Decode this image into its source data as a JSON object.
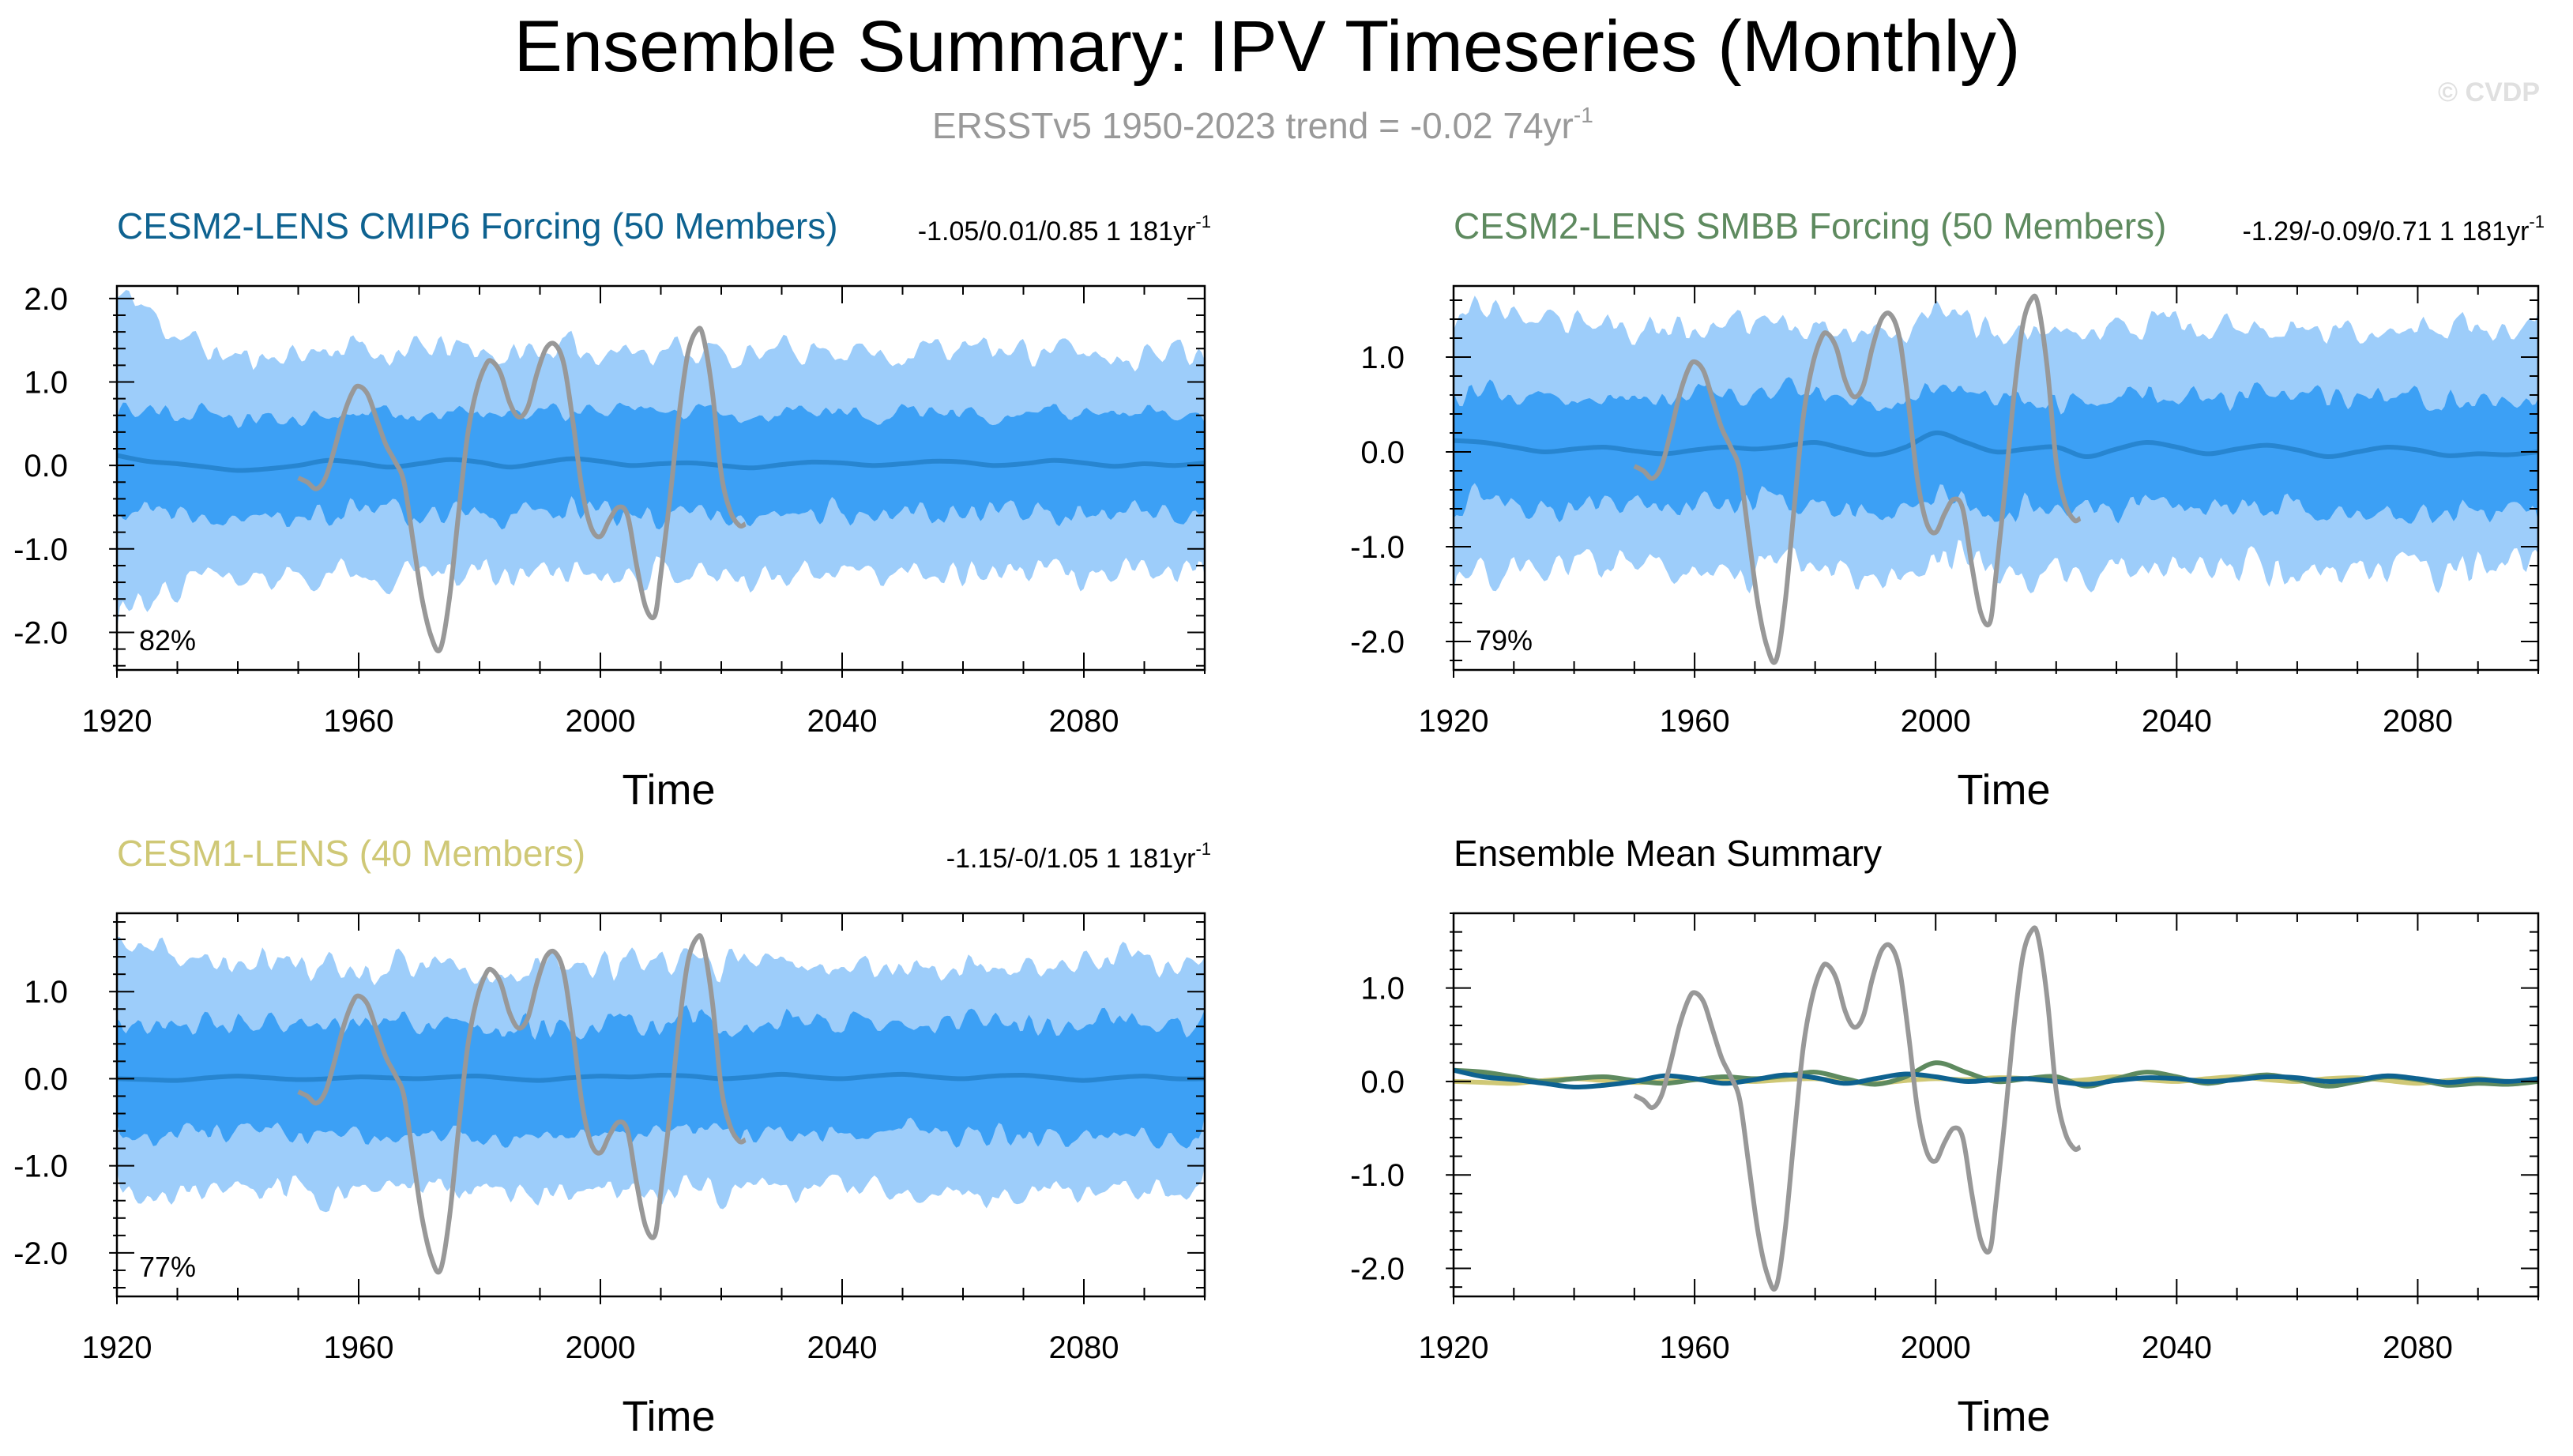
{
  "page": {
    "title": "Ensemble Summary: IPV Timeseries (Monthly)",
    "subtitle_main": "ERSSTv5 1950-2023 trend = -0.02 74yr",
    "subtitle_sup": "-1",
    "watermark": "© CVDP"
  },
  "colors": {
    "title": "#000000",
    "subtitle": "#999999",
    "watermark": "#e0e0e0",
    "outer_band": "#9dcdfa",
    "inner_band": "#3ca0f5",
    "mean_line": "#2785d0",
    "obs_line": "#989898",
    "cmip6": "#0e6290",
    "smbb": "#5e8a5f",
    "cesm1": "#cfc876"
  },
  "chart_data": [
    {
      "id": "cmip6",
      "type": "area",
      "title": "CESM2-LENS CMIP6 Forcing (50 Members)",
      "title_color": "#0e6290",
      "stats": "-1.05/0.01/0.85 1 181yr",
      "stats_sup": "-1",
      "pct": "82%",
      "xlabel": "Time",
      "xlim": [
        1920,
        2100
      ],
      "ylim": [
        -2.45,
        2.15
      ],
      "xticks": [
        "1920",
        "1960",
        "2000",
        "2040",
        "2080"
      ],
      "yticks": [
        "2.0",
        "1.0",
        "0.0",
        "-1.0",
        "-2.0"
      ],
      "ytick_values": [
        2.0,
        1.0,
        0.0,
        -1.0,
        -2.0
      ],
      "band_seed": 11,
      "band": {
        "outer_upper": 1.35,
        "outer_lower": -1.3,
        "inner_upper": 0.6,
        "inner_lower": -0.6,
        "early_outer": 2.0
      },
      "mean": [
        [
          1920,
          0.12
        ],
        [
          1925,
          0.05
        ],
        [
          1930,
          0.02
        ],
        [
          1935,
          -0.02
        ],
        [
          1940,
          -0.06
        ],
        [
          1945,
          -0.04
        ],
        [
          1950,
          0.0
        ],
        [
          1955,
          0.06
        ],
        [
          1960,
          0.03
        ],
        [
          1965,
          -0.02
        ],
        [
          1970,
          0.02
        ],
        [
          1975,
          0.07
        ],
        [
          1980,
          0.04
        ],
        [
          1985,
          -0.02
        ],
        [
          1990,
          0.03
        ],
        [
          1995,
          0.08
        ],
        [
          2000,
          0.05
        ],
        [
          2005,
          0.0
        ],
        [
          2010,
          0.02
        ],
        [
          2015,
          0.03
        ],
        [
          2020,
          0.0
        ],
        [
          2025,
          -0.03
        ],
        [
          2030,
          0.01
        ],
        [
          2035,
          0.04
        ],
        [
          2040,
          0.03
        ],
        [
          2045,
          0.0
        ],
        [
          2050,
          0.02
        ],
        [
          2055,
          0.05
        ],
        [
          2060,
          0.04
        ],
        [
          2065,
          0.0
        ],
        [
          2070,
          0.02
        ],
        [
          2075,
          0.06
        ],
        [
          2080,
          0.03
        ],
        [
          2085,
          -0.01
        ],
        [
          2090,
          0.02
        ],
        [
          2095,
          0.0
        ],
        [
          2100,
          0.03
        ]
      ]
    },
    {
      "id": "smbb",
      "type": "area",
      "title": "CESM2-LENS SMBB Forcing (50 Members)",
      "title_color": "#5e8a5f",
      "stats": "-1.29/-0.09/0.71 1 181yr",
      "stats_sup": "-1",
      "pct": "79%",
      "xlabel": "Time",
      "xlim": [
        1920,
        2100
      ],
      "ylim": [
        -2.3,
        1.75
      ],
      "xticks": [
        "1920",
        "1960",
        "2000",
        "2040",
        "2080"
      ],
      "yticks": [
        "1.0",
        "0.0",
        "-1.0",
        "-2.0"
      ],
      "ytick_values": [
        1.0,
        0.0,
        -1.0,
        -2.0
      ],
      "band_seed": 23,
      "band": {
        "outer_upper": 1.3,
        "outer_lower": -1.25,
        "inner_upper": 0.55,
        "inner_lower": -0.6,
        "early_outer": 1.5
      },
      "mean": [
        [
          1920,
          0.12
        ],
        [
          1925,
          0.1
        ],
        [
          1930,
          0.05
        ],
        [
          1935,
          0.0
        ],
        [
          1940,
          0.03
        ],
        [
          1945,
          0.05
        ],
        [
          1950,
          0.01
        ],
        [
          1955,
          -0.02
        ],
        [
          1960,
          0.02
        ],
        [
          1965,
          0.05
        ],
        [
          1970,
          0.03
        ],
        [
          1975,
          0.06
        ],
        [
          1980,
          0.1
        ],
        [
          1985,
          0.03
        ],
        [
          1990,
          -0.03
        ],
        [
          1995,
          0.05
        ],
        [
          2000,
          0.2
        ],
        [
          2005,
          0.1
        ],
        [
          2010,
          0.0
        ],
        [
          2015,
          0.03
        ],
        [
          2020,
          0.05
        ],
        [
          2025,
          -0.05
        ],
        [
          2030,
          0.03
        ],
        [
          2035,
          0.1
        ],
        [
          2040,
          0.05
        ],
        [
          2045,
          -0.02
        ],
        [
          2050,
          0.03
        ],
        [
          2055,
          0.07
        ],
        [
          2060,
          0.02
        ],
        [
          2065,
          -0.05
        ],
        [
          2070,
          0.0
        ],
        [
          2075,
          0.05
        ],
        [
          2080,
          0.02
        ],
        [
          2085,
          -0.04
        ],
        [
          2090,
          -0.02
        ],
        [
          2095,
          -0.03
        ],
        [
          2100,
          0.0
        ]
      ]
    },
    {
      "id": "cesm1",
      "type": "area",
      "title": "CESM1-LENS (40 Members)",
      "title_color": "#cfc876",
      "stats": "-1.15/-0/1.05 1 181yr",
      "stats_sup": "-1",
      "pct": "77%",
      "xlabel": "Time",
      "xlim": [
        1920,
        2100
      ],
      "ylim": [
        -2.5,
        1.9
      ],
      "xticks": [
        "1920",
        "1960",
        "2000",
        "2040",
        "2080"
      ],
      "yticks": [
        "1.0",
        "0.0",
        "-1.0",
        "-2.0"
      ],
      "ytick_values": [
        1.0,
        0.0,
        -1.0,
        -2.0
      ],
      "band_seed": 37,
      "band": {
        "outer_upper": 1.3,
        "outer_lower": -1.3,
        "inner_upper": 0.62,
        "inner_lower": -0.65,
        "early_outer": 1.5
      },
      "mean": [
        [
          1920,
          0.0
        ],
        [
          1925,
          -0.01
        ],
        [
          1930,
          -0.02
        ],
        [
          1935,
          0.01
        ],
        [
          1940,
          0.03
        ],
        [
          1945,
          0.01
        ],
        [
          1950,
          -0.01
        ],
        [
          1955,
          0.0
        ],
        [
          1960,
          0.02
        ],
        [
          1965,
          0.01
        ],
        [
          1970,
          0.0
        ],
        [
          1975,
          0.02
        ],
        [
          1980,
          0.03
        ],
        [
          1985,
          0.0
        ],
        [
          1990,
          -0.02
        ],
        [
          1995,
          0.01
        ],
        [
          2000,
          0.03
        ],
        [
          2005,
          0.02
        ],
        [
          2010,
          0.04
        ],
        [
          2015,
          0.03
        ],
        [
          2020,
          0.0
        ],
        [
          2025,
          0.02
        ],
        [
          2030,
          0.05
        ],
        [
          2035,
          0.02
        ],
        [
          2040,
          0.0
        ],
        [
          2045,
          0.03
        ],
        [
          2050,
          0.05
        ],
        [
          2055,
          0.02
        ],
        [
          2060,
          0.0
        ],
        [
          2065,
          0.03
        ],
        [
          2070,
          0.04
        ],
        [
          2075,
          0.01
        ],
        [
          2080,
          -0.02
        ],
        [
          2085,
          0.01
        ],
        [
          2090,
          0.03
        ],
        [
          2095,
          0.0
        ],
        [
          2100,
          0.0
        ]
      ]
    },
    {
      "id": "summary",
      "type": "line",
      "title": "Ensemble Mean Summary",
      "title_color": "#000000",
      "xlabel": "Time",
      "xlim": [
        1920,
        2100
      ],
      "ylim": [
        -2.3,
        1.8
      ],
      "xticks": [
        "1920",
        "1960",
        "2000",
        "2040",
        "2080"
      ],
      "yticks": [
        "1.0",
        "0.0",
        "-1.0",
        "-2.0"
      ],
      "ytick_values": [
        1.0,
        0.0,
        -1.0,
        -2.0
      ],
      "series_refs": [
        {
          "ref": "cesm1",
          "color": "#cfc876"
        },
        {
          "ref": "smbb",
          "color": "#5e8a5f"
        },
        {
          "ref": "cmip6",
          "color": "#0e6290"
        }
      ]
    }
  ],
  "observations": {
    "x": [
      1950.0,
      1951.5,
      1953.0,
      1954.5,
      1956.0,
      1957.5,
      1959.0,
      1960.0,
      1961.5,
      1963.0,
      1964.5,
      1966.0,
      1967.5,
      1969.0,
      1970.5,
      1972.0,
      1973.5,
      1975.0,
      1976.5,
      1978.0,
      1979.5,
      1981.0,
      1982.0,
      1983.5,
      1985.0,
      1986.5,
      1988.0,
      1989.5,
      1991.0,
      1992.5,
      1994.0,
      1995.5,
      1997.0,
      1998.5,
      2000.0,
      2001.5,
      2003.0,
      2004.5,
      2006.0,
      2007.5,
      2009.0,
      2010.0,
      2011.5,
      2013.0,
      2014.5,
      2016.0,
      2017.0,
      2018.5,
      2020.0,
      2021.5,
      2023.0,
      2024.0
    ],
    "y": [
      -0.15,
      -0.2,
      -0.28,
      -0.15,
      0.2,
      0.6,
      0.88,
      0.95,
      0.85,
      0.55,
      0.25,
      0.05,
      -0.2,
      -0.9,
      -1.6,
      -2.05,
      -2.2,
      -1.6,
      -0.6,
      0.35,
      0.9,
      1.2,
      1.25,
      1.1,
      0.75,
      0.58,
      0.7,
      1.1,
      1.4,
      1.45,
      1.2,
      0.5,
      -0.3,
      -0.75,
      -0.85,
      -0.65,
      -0.5,
      -0.6,
      -1.2,
      -1.7,
      -1.8,
      -1.3,
      -0.4,
      0.6,
      1.35,
      1.62,
      1.55,
      0.9,
      -0.1,
      -0.55,
      -0.72,
      -0.7
    ]
  }
}
